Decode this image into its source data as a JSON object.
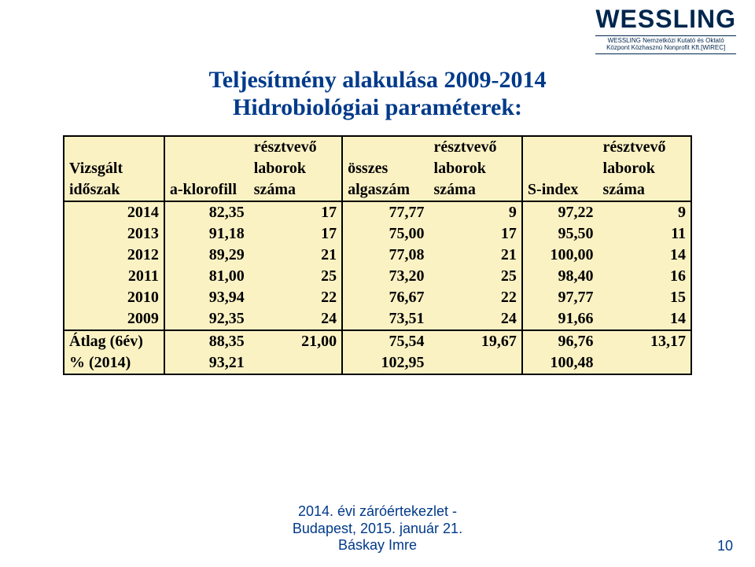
{
  "logo": {
    "main": "WESSLING",
    "sub1": "WESSLING Nemzetközi Kutató és Oktató",
    "sub2": "Központ Közhasznú Nonprofit Kft.[WIREC]"
  },
  "title": {
    "line1": "Teljesítmény alakulása 2009-2014",
    "line2": "Hidrobiológiai paraméterek:"
  },
  "colors": {
    "title": "#003a8a",
    "table_bg": "#fbf2c4",
    "border": "#000000",
    "footer": "#003a8a"
  },
  "fonts": {
    "title_family": "Times New Roman",
    "title_size_pt": 22,
    "table_family": "Times New Roman",
    "table_size_pt": 15,
    "table_weight": "bold"
  },
  "table": {
    "header_row1": [
      "",
      "",
      "résztvevő",
      "",
      "résztvevő",
      "",
      "résztvevő"
    ],
    "header_row2": [
      "Vizsgált",
      "",
      "laborok",
      "összes",
      "laborok",
      "",
      "laborok"
    ],
    "header_row3": [
      "időszak",
      "a-klorofill",
      "száma",
      "algaszám",
      "száma",
      "S-index",
      "száma"
    ],
    "rows": [
      [
        "2014",
        "82,35",
        "17",
        "77,77",
        "9",
        "97,22",
        "9"
      ],
      [
        "2013",
        "91,18",
        "17",
        "75,00",
        "17",
        "95,50",
        "11"
      ],
      [
        "2012",
        "89,29",
        "21",
        "77,08",
        "21",
        "100,00",
        "14"
      ],
      [
        "2011",
        "81,00",
        "25",
        "73,20",
        "25",
        "98,40",
        "16"
      ],
      [
        "2010",
        "93,94",
        "22",
        "76,67",
        "22",
        "97,77",
        "15"
      ],
      [
        "2009",
        "92,35",
        "24",
        "73,51",
        "24",
        "91,66",
        "14"
      ]
    ],
    "summary": [
      [
        "Átlag (6év)",
        "88,35",
        "21,00",
        "75,54",
        "19,67",
        "96,76",
        "13,17"
      ],
      [
        "% (2014)",
        "93,21",
        "",
        "102,95",
        "",
        "100,48",
        ""
      ]
    ]
  },
  "footer": {
    "line1": "2014. évi záróértekezlet -",
    "line2": "Budapest, 2015. január 21.",
    "line3": "Báskay Imre",
    "page": "10"
  }
}
